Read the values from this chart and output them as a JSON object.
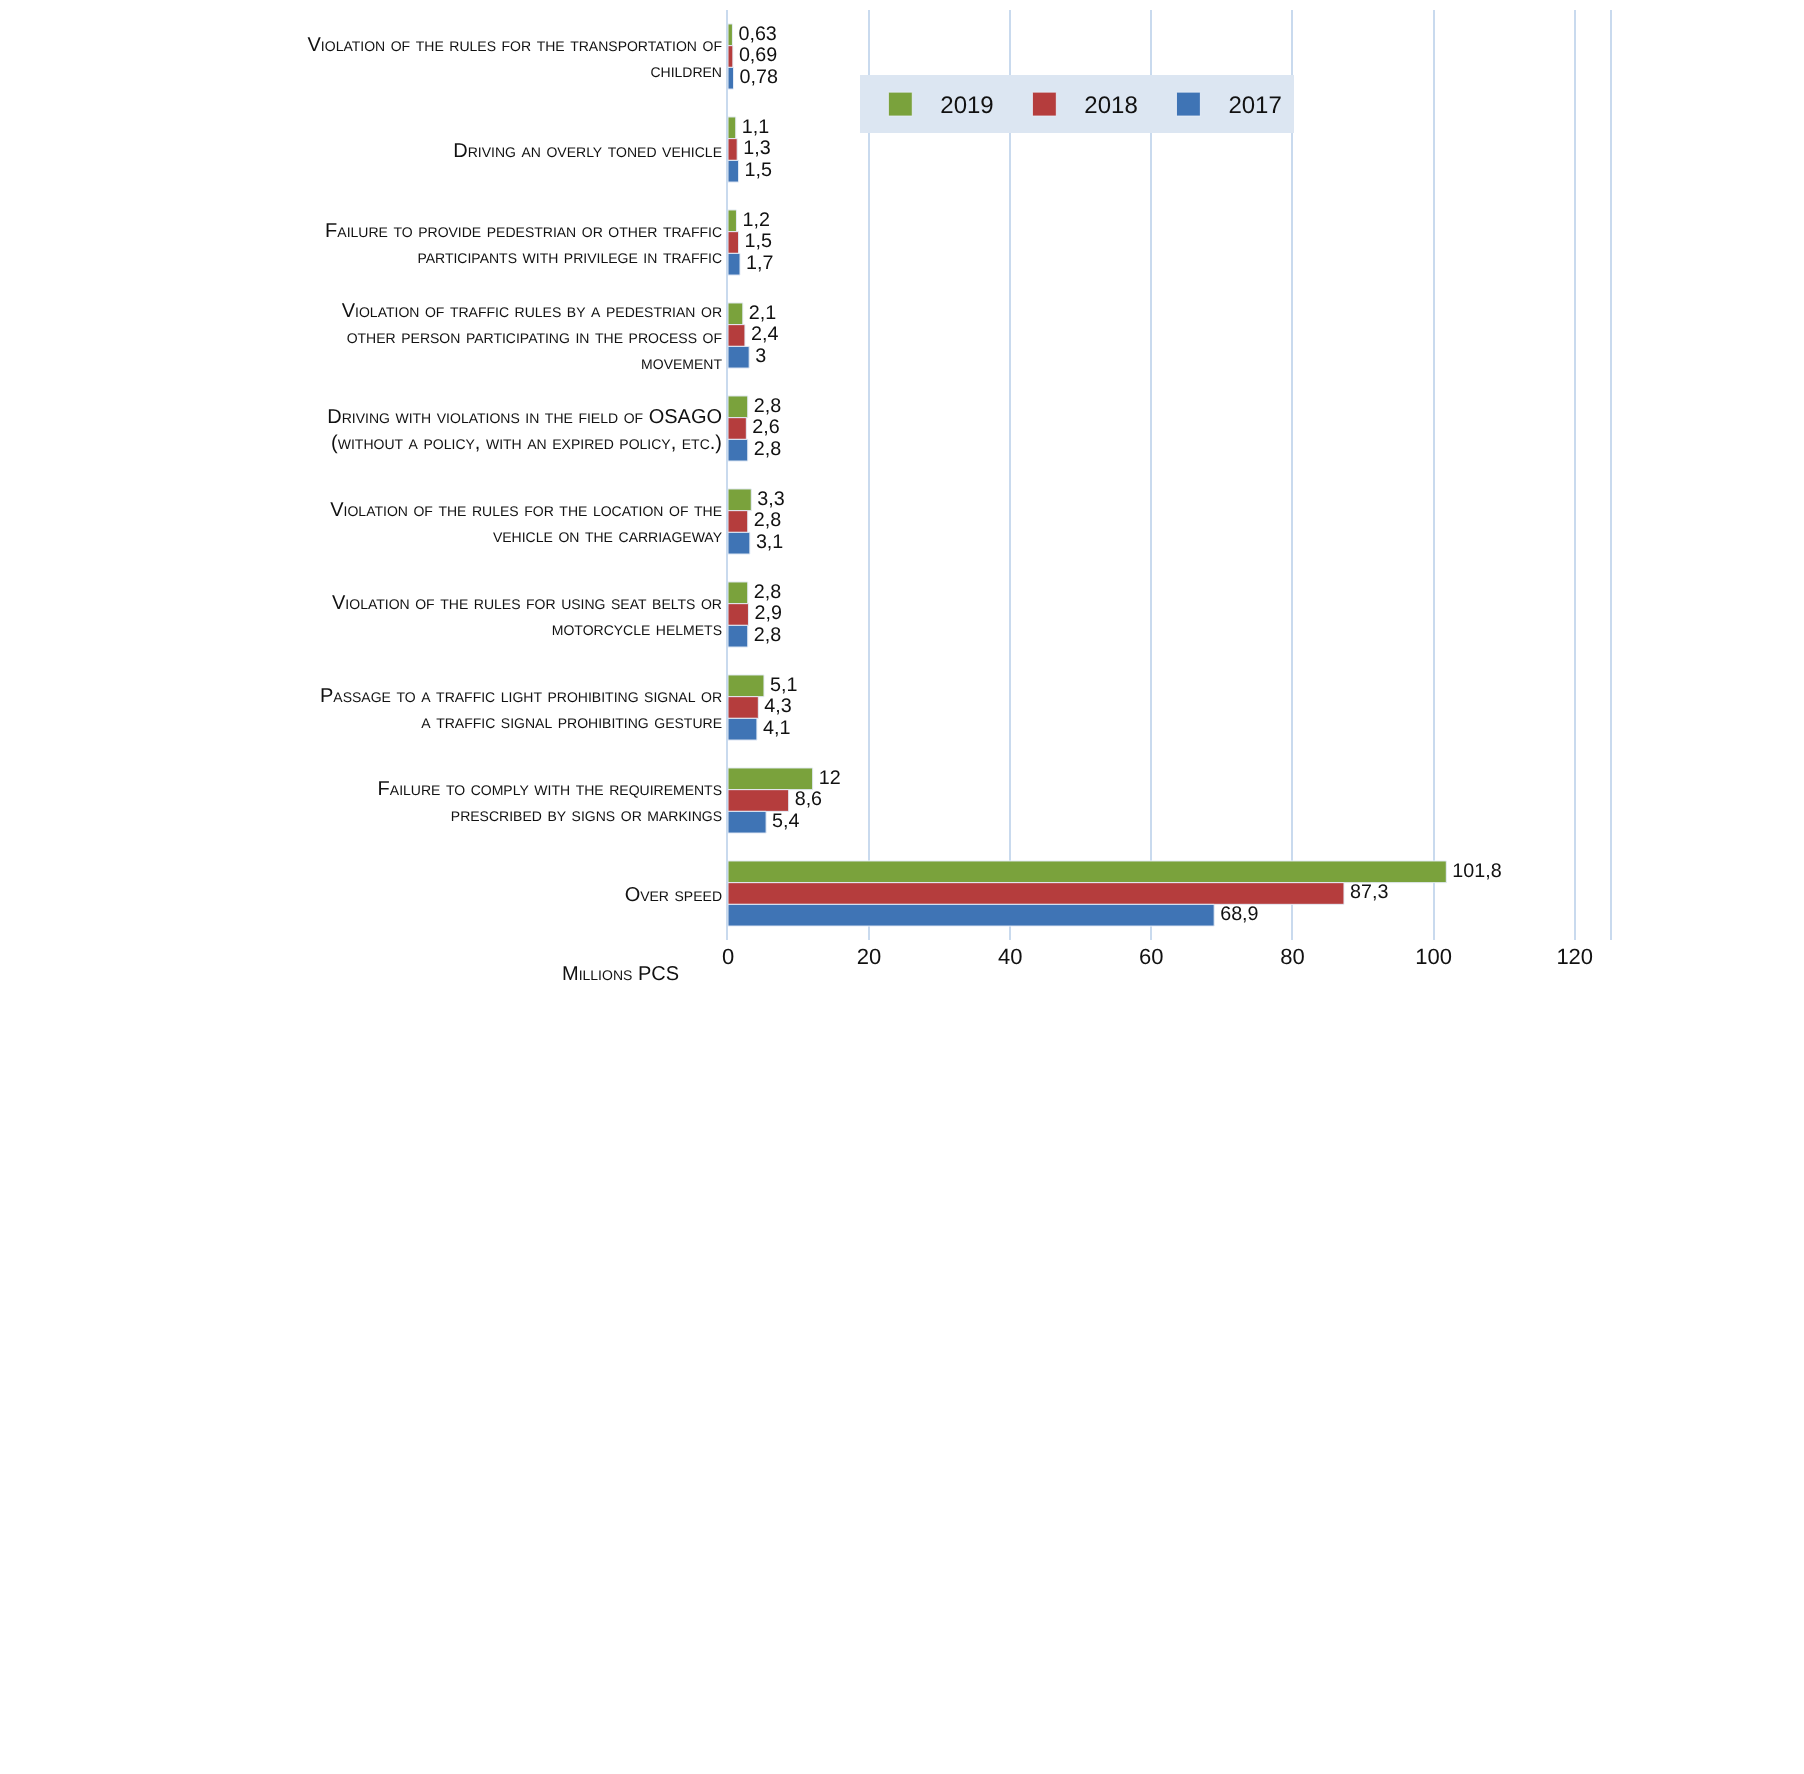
{
  "chart_data": {
    "type": "bar",
    "orientation": "horizontal",
    "xlabel": "Millions PCS",
    "categories": [
      "Violation of the rules for the transportation of children",
      "Driving an overly toned vehicle",
      "Failure to provide pedestrian or other traffic participants with privilege in traffic",
      "Violation of traffic rules by a pedestrian or other person participating in the process of movement",
      "Driving with violations in the field of OSAGO (without a policy, with an expired policy, etc.)",
      "Violation of the rules for the location of the vehicle on the carriageway",
      "Violation of the rules for using seat belts or motorcycle helmets",
      "Passage to a traffic light prohibiting signal or a traffic signal prohibiting gesture",
      "Failure to comply with the requirements prescribed by signs or markings",
      "Over speed"
    ],
    "series": [
      {
        "name": "2019",
        "color": "#7aa23c",
        "values": [
          0.63,
          1.1,
          1.2,
          2.1,
          2.8,
          3.3,
          2.8,
          5.1,
          12,
          101.8
        ],
        "value_labels": [
          "0,63",
          "1,1",
          "1,2",
          "2,1",
          "2,8",
          "3,3",
          "2,8",
          "5,1",
          "12",
          "101,8"
        ]
      },
      {
        "name": "2018",
        "color": "#b53d3d",
        "values": [
          0.69,
          1.3,
          1.5,
          2.4,
          2.6,
          2.8,
          2.9,
          4.3,
          8.6,
          87.3
        ],
        "value_labels": [
          "0,69",
          "1,3",
          "1,5",
          "2,4",
          "2,6",
          "2,8",
          "2,9",
          "4,3",
          "8,6",
          "87,3"
        ]
      },
      {
        "name": "2017",
        "color": "#3f74b5",
        "values": [
          0.78,
          1.5,
          1.7,
          3,
          2.8,
          3.1,
          2.8,
          4.1,
          5.4,
          68.9
        ],
        "value_labels": [
          "0,78",
          "1,5",
          "1,7",
          "3",
          "2,8",
          "3,1",
          "2,8",
          "4,1",
          "5,4",
          "68,9"
        ]
      }
    ],
    "xlim": [
      0,
      125
    ],
    "xticks": [
      0,
      20,
      40,
      60,
      80,
      100,
      120
    ],
    "grid": "x",
    "legend": "top left"
  }
}
